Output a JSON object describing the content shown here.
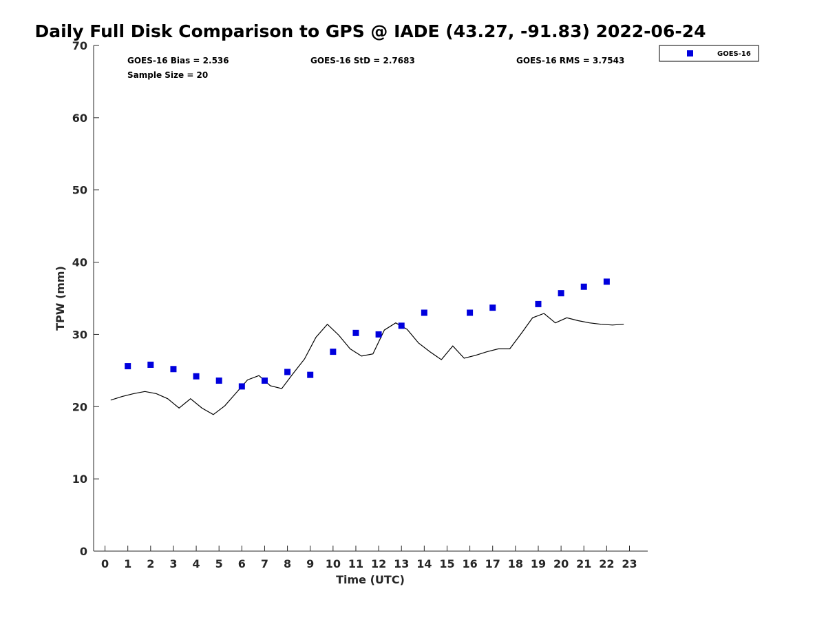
{
  "chart_data": {
    "type": "scatter",
    "title": "Daily Full Disk Comparison to GPS @ IADE (43.27, -91.83) 2022-06-24",
    "xlabel": "Time (UTC)",
    "ylabel": "TPW (mm)",
    "xlim": [
      -0.5,
      23.8
    ],
    "ylim": [
      0,
      70
    ],
    "x_ticks": [
      0,
      1,
      2,
      3,
      4,
      5,
      6,
      7,
      8,
      9,
      10,
      11,
      12,
      13,
      14,
      15,
      16,
      17,
      18,
      19,
      20,
      21,
      22,
      23
    ],
    "y_ticks": [
      0,
      10,
      20,
      30,
      40,
      50,
      60,
      70
    ],
    "grid": false,
    "legend_position": "top-right-outside",
    "stats": {
      "bias": "GOES-16 Bias = 2.536",
      "std": "GOES-16 StD = 2.7683",
      "rms": "GOES-16 RMS = 3.7543",
      "sample_size": "Sample Size = 20"
    },
    "series": [
      {
        "name": "GOES-16",
        "kind": "scatter",
        "marker": "square",
        "color": "#0000dd",
        "x": [
          1,
          2,
          3,
          4,
          5,
          6,
          7,
          8,
          9,
          10,
          11,
          12,
          13,
          14,
          16,
          17,
          19,
          20,
          21,
          22
        ],
        "y": [
          25.6,
          25.8,
          25.2,
          24.2,
          23.6,
          22.8,
          23.6,
          24.8,
          24.4,
          27.6,
          30.2,
          30.0,
          31.2,
          33.0,
          33.0,
          33.7,
          34.2,
          35.7,
          36.6,
          37.3
        ]
      },
      {
        "kind": "line",
        "color": "#000000",
        "x": [
          0.25,
          0.75,
          1.25,
          1.75,
          2.25,
          2.75,
          3.25,
          3.75,
          4.25,
          4.75,
          5.25,
          5.75,
          6.25,
          6.75,
          7.25,
          7.75,
          8.25,
          8.75,
          9.25,
          9.75,
          10.25,
          10.75,
          11.25,
          11.75,
          12.25,
          12.75,
          13.25,
          13.75,
          14.25,
          14.75,
          15.25,
          15.75,
          16.25,
          16.75,
          17.25,
          17.75,
          18.25,
          18.75,
          19.25,
          19.75,
          20.25,
          20.75,
          21.25,
          21.75,
          22.25,
          22.75
        ],
        "y": [
          20.9,
          21.4,
          21.8,
          22.1,
          21.8,
          21.1,
          19.8,
          21.1,
          19.8,
          18.9,
          20.1,
          21.9,
          23.7,
          24.3,
          22.9,
          22.5,
          24.6,
          26.6,
          29.6,
          31.4,
          29.9,
          28.0,
          27.0,
          27.3,
          30.6,
          31.6,
          30.7,
          28.8,
          27.6,
          26.5,
          28.4,
          26.7,
          27.1,
          27.6,
          28.0,
          28.0,
          30.1,
          32.3,
          32.9,
          31.6,
          32.3,
          31.9,
          31.6,
          31.4,
          31.3,
          31.4
        ]
      }
    ]
  }
}
